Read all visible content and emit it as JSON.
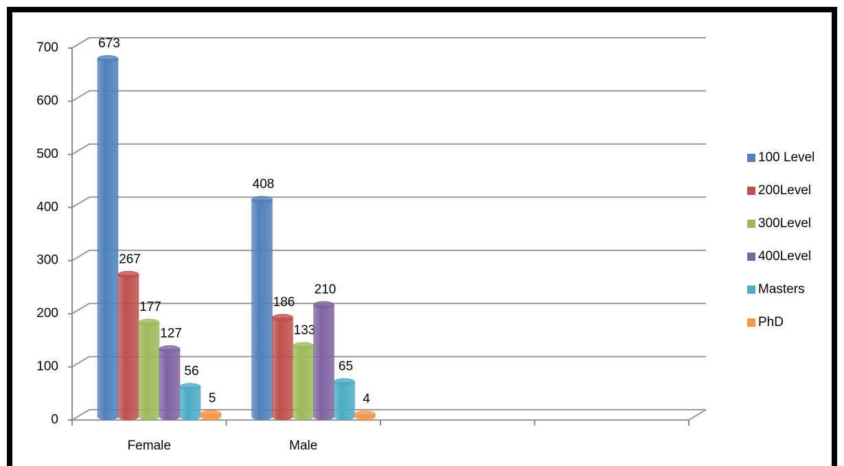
{
  "chart_data": {
    "type": "bar3d",
    "categories": [
      "Female",
      "Male",
      null,
      null
    ],
    "series": [
      {
        "name": "100 Level",
        "color": "#4f81bd",
        "values": [
          673,
          408,
          null,
          null
        ]
      },
      {
        "name": "200Level",
        "color": "#c0504d",
        "values": [
          267,
          186,
          null,
          null
        ]
      },
      {
        "name": "300Level",
        "color": "#9bbb59",
        "values": [
          177,
          133,
          null,
          null
        ]
      },
      {
        "name": "400Level",
        "color": "#8064a2",
        "values": [
          127,
          210,
          null,
          null
        ]
      },
      {
        "name": "Masters",
        "color": "#4bacc6",
        "values": [
          56,
          65,
          null,
          null
        ]
      },
      {
        "name": "PhD",
        "color": "#f79646",
        "values": [
          5,
          4,
          null,
          null
        ]
      }
    ],
    "ylim": [
      0,
      700
    ],
    "yticks": [
      0,
      100,
      200,
      300,
      400,
      500,
      600,
      700
    ],
    "grid": true,
    "legend": "right"
  }
}
